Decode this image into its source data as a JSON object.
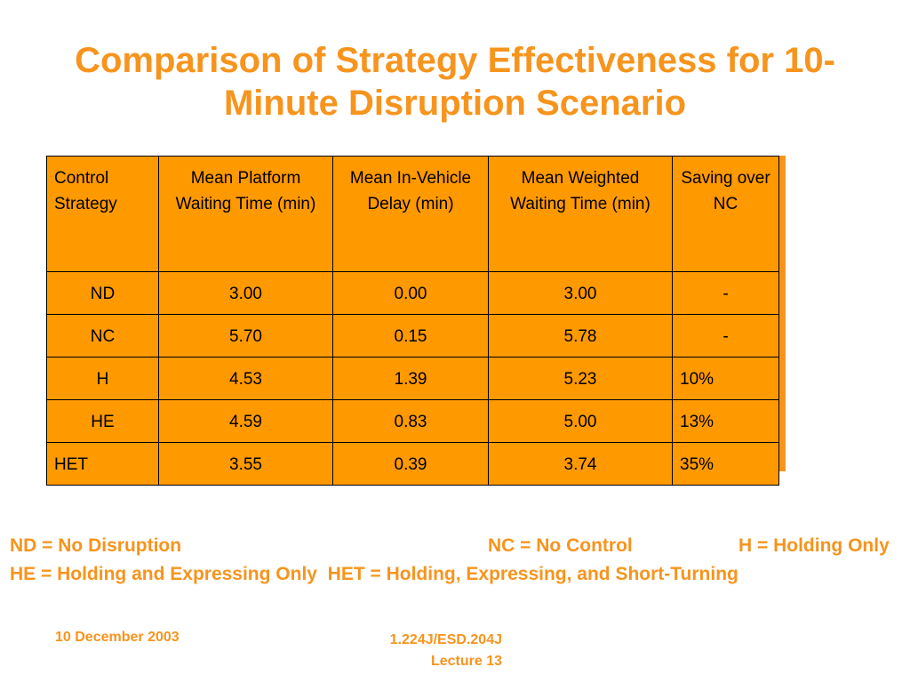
{
  "header": {
    "title": "Comparison of Strategy Effectiveness for 10-Minute Disruption Scenario"
  },
  "table": {
    "columns": [
      "Control Strategy",
      "Mean Platform Waiting Time (min)",
      "Mean In-Vehicle Delay (min)",
      "Mean Weighted Waiting Time (min)",
      "Saving over NC"
    ],
    "rows": [
      [
        "ND",
        "3.00",
        "0.00",
        "3.00",
        "-"
      ],
      [
        "NC",
        "5.70",
        "0.15",
        "5.78",
        "-"
      ],
      [
        "H",
        "4.53",
        "1.39",
        "5.23",
        "10%"
      ],
      [
        "HE",
        "4.59",
        "0.83",
        "5.00",
        "13%"
      ],
      [
        "HET",
        "3.55",
        "0.39",
        "3.74",
        "35%"
      ]
    ]
  },
  "legend": [
    "ND = No Disruption",
    "NC = No Control",
    "H = Holding Only",
    "HE = Holding and Expressing Only",
    "HET = Holding, Expressing, and Short-Turning"
  ],
  "footer": {
    "date": "10 December 2003",
    "course": "1.224J/ESD.204J Lecture 13"
  }
}
